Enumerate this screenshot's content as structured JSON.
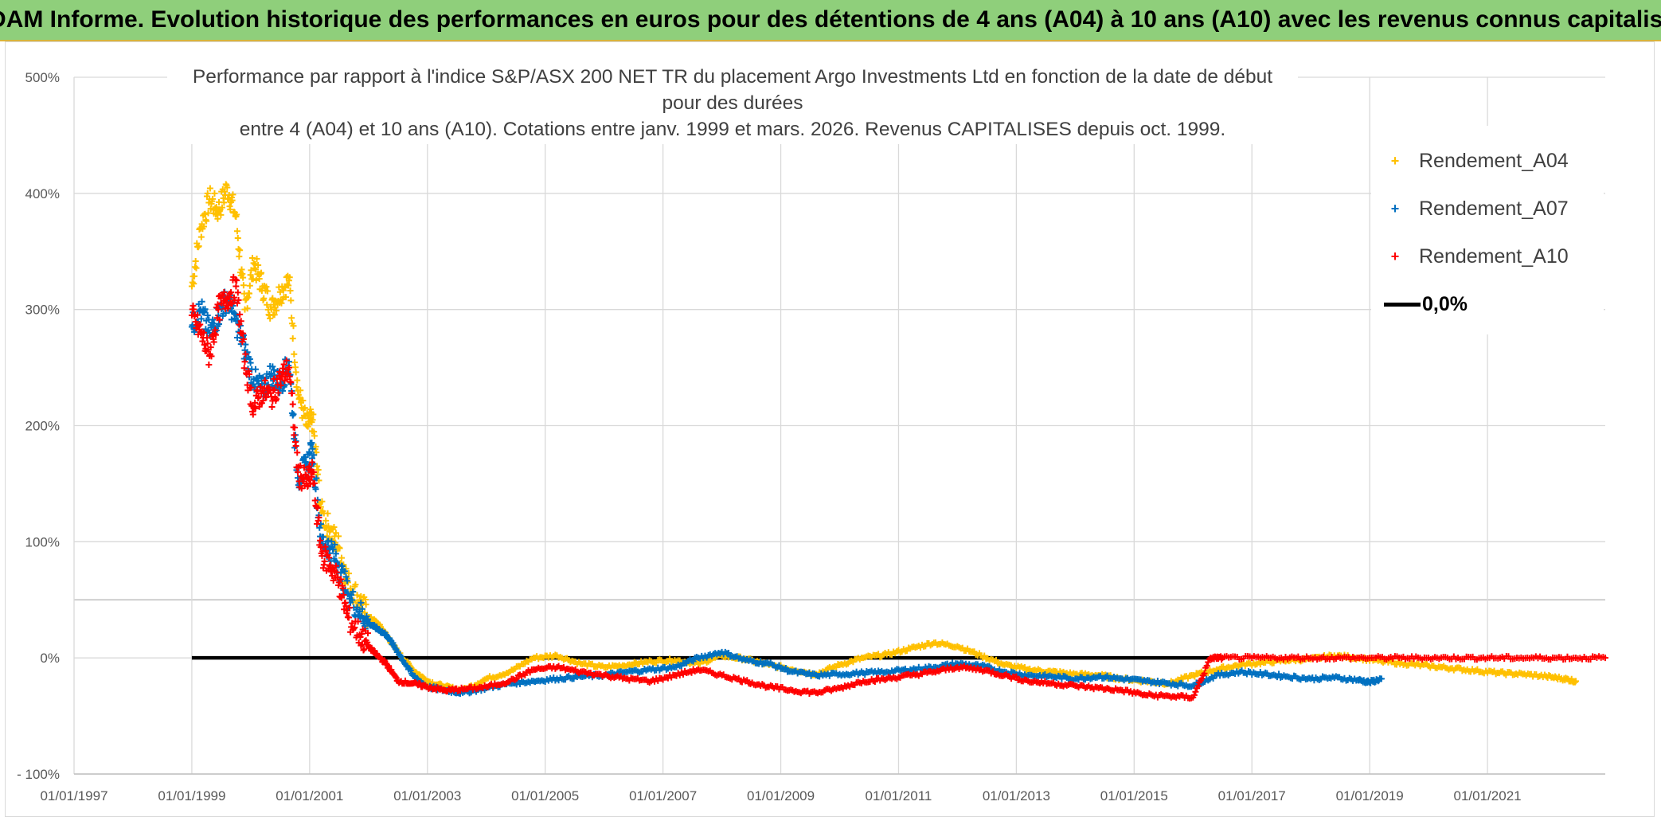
{
  "banner": {
    "title": "ADAM Informe. Evolution historique des performances en euros pour des détentions de 4 ans (A04) à 10 ans (A10) avec les revenus connus capitalisés"
  },
  "colors": {
    "banner_bg": "#8fcf7b",
    "a04": "#ffc000",
    "a07": "#0070c0",
    "a10": "#ff0000",
    "zero": "#000000"
  },
  "chart_data": {
    "type": "scatter",
    "title_line1": "Performance par rapport à l'indice S&P/ASX 200 NET TR  du placement Argo Investments Ltd en fonction de la date de début pour des durées",
    "title_line2": "entre 4 (A04) et 10 ans (A10). Cotations entre janv. 1999 et mars. 2026. Revenus CAPITALISES depuis oct. 1999.",
    "y_ticks": [
      "500%",
      "400%",
      "300%",
      "200%",
      "100%",
      "0%",
      "- 100%"
    ],
    "ylim": [
      -100,
      500
    ],
    "x_ticks": [
      "01/01/1997",
      "01/01/1999",
      "01/01/2001",
      "01/01/2003",
      "01/01/2005",
      "01/01/2007",
      "01/01/2009",
      "01/01/2011",
      "01/01/2013",
      "01/01/2015",
      "01/01/2017",
      "01/01/2019",
      "01/01/2021"
    ],
    "xlim": [
      1997.0,
      2023.0
    ],
    "legend": [
      "Rendement_A04",
      "Rendement_A07",
      "Rendement_A10",
      "0,0%"
    ],
    "series": [
      {
        "name": "Rendement_A04",
        "color": "#ffc000",
        "x": [
          1999.0,
          1999.15,
          1999.3,
          1999.45,
          1999.6,
          1999.75,
          1999.9,
          2000.05,
          2000.2,
          2000.35,
          2000.5,
          2000.65,
          2000.8,
          2000.95,
          2001.05,
          2001.2,
          2001.35,
          2001.5,
          2001.65,
          2001.85,
          2002.0,
          2002.15,
          2002.3,
          2002.5,
          2002.75,
          2003.0,
          2003.3,
          2003.6,
          2004.0,
          2004.4,
          2004.8,
          2005.2,
          2005.6,
          2006.0,
          2006.4,
          2006.8,
          2007.2,
          2007.6,
          2008.0,
          2008.4,
          2008.8,
          2009.2,
          2009.6,
          2010.0,
          2010.4,
          2010.8,
          2011.2,
          2011.6,
          2012.0,
          2012.4,
          2012.8,
          2013.2,
          2013.6,
          2014.0,
          2014.4,
          2014.8,
          2015.2,
          2015.6,
          2016.0,
          2016.4,
          2016.8,
          2017.2,
          2017.6,
          2018.0,
          2018.4,
          2018.8,
          2019.2,
          2019.6,
          2020.0,
          2020.4,
          2020.8,
          2021.2,
          2021.6,
          2022.0,
          2022.3,
          2022.5
        ],
        "y": [
          320,
          370,
          395,
          385,
          405,
          380,
          300,
          340,
          320,
          300,
          315,
          325,
          230,
          200,
          205,
          125,
          110,
          95,
          65,
          50,
          35,
          30,
          20,
          5,
          -10,
          -20,
          -25,
          -28,
          -18,
          -12,
          0,
          2,
          -5,
          -8,
          -6,
          -3,
          -2,
          -5,
          2,
          -1,
          -6,
          -10,
          -14,
          -6,
          0,
          3,
          8,
          13,
          10,
          2,
          -6,
          -10,
          -12,
          -14,
          -15,
          -18,
          -20,
          -22,
          -15,
          -10,
          -6,
          -4,
          -2,
          -1,
          2,
          0,
          -3,
          -5,
          -7,
          -9,
          -11,
          -13,
          -14,
          -16,
          -18,
          -20
        ]
      },
      {
        "name": "Rendement_A07",
        "color": "#0070c0",
        "x": [
          1999.0,
          1999.15,
          1999.3,
          1999.45,
          1999.6,
          1999.75,
          1999.9,
          2000.05,
          2000.2,
          2000.35,
          2000.5,
          2000.65,
          2000.8,
          2000.95,
          2001.05,
          2001.2,
          2001.35,
          2001.5,
          2001.65,
          2001.85,
          2002.0,
          2002.15,
          2002.3,
          2002.5,
          2002.75,
          2003.0,
          2003.3,
          2003.6,
          2004.0,
          2004.4,
          2004.8,
          2005.2,
          2005.6,
          2006.0,
          2006.4,
          2006.8,
          2007.2,
          2007.6,
          2008.0,
          2008.4,
          2008.8,
          2009.2,
          2009.6,
          2010.0,
          2010.4,
          2010.8,
          2011.2,
          2011.6,
          2012.0,
          2012.4,
          2012.8,
          2013.2,
          2013.6,
          2014.0,
          2014.4,
          2014.8,
          2015.2,
          2015.6,
          2016.0,
          2016.4,
          2016.8,
          2017.2,
          2017.6,
          2018.0,
          2018.4,
          2018.8,
          2019.0,
          2019.2
        ],
        "y": [
          285,
          300,
          280,
          295,
          310,
          290,
          265,
          240,
          230,
          245,
          235,
          255,
          155,
          165,
          180,
          100,
          95,
          80,
          55,
          40,
          30,
          25,
          20,
          5,
          -15,
          -25,
          -28,
          -30,
          -26,
          -22,
          -20,
          -18,
          -16,
          -15,
          -12,
          -10,
          -8,
          0,
          5,
          -2,
          -5,
          -12,
          -15,
          -14,
          -13,
          -12,
          -10,
          -8,
          -5,
          -7,
          -12,
          -15,
          -16,
          -18,
          -16,
          -18,
          -20,
          -22,
          -24,
          -15,
          -12,
          -14,
          -16,
          -18,
          -17,
          -19,
          -21,
          -18
        ]
      },
      {
        "name": "Rendement_A10",
        "color": "#ff0000",
        "x": [
          1999.0,
          1999.15,
          1999.3,
          1999.45,
          1999.6,
          1999.75,
          1999.9,
          2000.05,
          2000.2,
          2000.35,
          2000.5,
          2000.65,
          2000.8,
          2000.95,
          2001.05,
          2001.2,
          2001.35,
          2001.5,
          2001.65,
          2001.85,
          2002.0,
          2002.15,
          2002.3,
          2002.5,
          2002.75,
          2003.0,
          2003.3,
          2003.6,
          2004.0,
          2004.4,
          2004.8,
          2005.2,
          2005.6,
          2006.0,
          2006.4,
          2006.8,
          2007.2,
          2007.6,
          2008.0,
          2008.4,
          2008.8,
          2009.2,
          2009.6,
          2010.0,
          2010.4,
          2010.8,
          2011.2,
          2011.6,
          2012.0,
          2012.4,
          2012.8,
          2013.2,
          2013.6,
          2014.0,
          2014.4,
          2014.8,
          2015.2,
          2015.6,
          2016.0,
          2016.3,
          2016.5,
          2017.0,
          2017.5,
          2018.0,
          2018.5,
          2019.0,
          2019.5,
          2020.0,
          2020.5,
          2021.0,
          2021.5,
          2022.0,
          2022.5,
          2023.0
        ],
        "y": [
          295,
          280,
          260,
          300,
          310,
          320,
          255,
          215,
          230,
          225,
          240,
          250,
          160,
          150,
          160,
          90,
          80,
          65,
          35,
          20,
          10,
          2,
          -5,
          -20,
          -22,
          -25,
          -28,
          -27,
          -25,
          -20,
          -10,
          -8,
          -12,
          -15,
          -18,
          -20,
          -15,
          -10,
          -15,
          -20,
          -25,
          -28,
          -30,
          -26,
          -20,
          -18,
          -15,
          -12,
          -8,
          -10,
          -15,
          -20,
          -22,
          -24,
          -26,
          -28,
          -32,
          -33,
          -34,
          0,
          0,
          0,
          0,
          0,
          0,
          0,
          0,
          0,
          0,
          0,
          0,
          0,
          0,
          0
        ]
      },
      {
        "name": "0,0%",
        "color": "#000000",
        "x": [
          1999.0,
          2016.3
        ],
        "y": [
          0,
          0
        ]
      }
    ]
  }
}
